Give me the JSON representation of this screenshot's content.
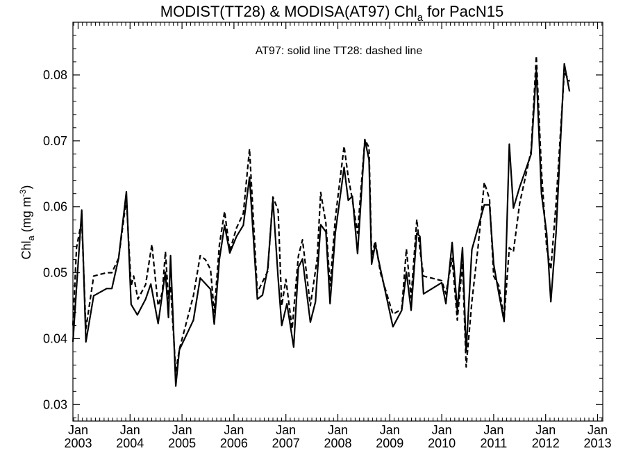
{
  "chart_data": {
    "type": "line",
    "title": "MODIST(TT28) & MODISA(AT97)  Chl",
    "title_sub": "a",
    "title_suffix": " for PacN15",
    "annotation": "AT97: solid line   TT28: dashed line",
    "ylabel": "Chl",
    "ylabel_sub": "a",
    "ylabel_unit": " (mg m",
    "ylabel_sup": "-3",
    "ylabel_close": ")",
    "xlabel": "",
    "xlim": [
      2002.9,
      2013.1
    ],
    "ylim": [
      0.0275,
      0.088
    ],
    "yticks": [
      "0.03",
      "0.04",
      "0.05",
      "0.06",
      "0.07",
      "0.08"
    ],
    "xticks": [
      {
        "top": "Jan",
        "bottom": "2003",
        "value": 2003.0
      },
      {
        "top": "Jan",
        "bottom": "2004",
        "value": 2004.0
      },
      {
        "top": "Jan",
        "bottom": "2005",
        "value": 2005.0
      },
      {
        "top": "Jan",
        "bottom": "2006",
        "value": 2006.0
      },
      {
        "top": "Jan",
        "bottom": "2007",
        "value": 2007.0
      },
      {
        "top": "Jan",
        "bottom": "2008",
        "value": 2008.0
      },
      {
        "top": "Jan",
        "bottom": "2009",
        "value": 2009.0
      },
      {
        "top": "Jan",
        "bottom": "2010",
        "value": 2010.0
      },
      {
        "top": "Jan",
        "bottom": "2011",
        "value": 2011.0
      },
      {
        "top": "Jan",
        "bottom": "2012",
        "value": 2012.0
      },
      {
        "top": "Jan",
        "bottom": "2013",
        "value": 2013.0
      }
    ],
    "series": [
      {
        "name": "AT97",
        "style": "solid",
        "color": "#000000",
        "points": [
          [
            2002.9,
            0.0395
          ],
          [
            2002.98,
            0.049
          ],
          [
            2003.07,
            0.0595
          ],
          [
            2003.15,
            0.0395
          ],
          [
            2003.3,
            0.0465
          ],
          [
            2003.55,
            0.0476
          ],
          [
            2003.65,
            0.0476
          ],
          [
            2003.78,
            0.0522
          ],
          [
            2003.93,
            0.0623
          ],
          [
            2004.02,
            0.0452
          ],
          [
            2004.14,
            0.0436
          ],
          [
            2004.3,
            0.046
          ],
          [
            2004.4,
            0.0483
          ],
          [
            2004.54,
            0.0423
          ],
          [
            2004.68,
            0.0501
          ],
          [
            2004.74,
            0.0432
          ],
          [
            2004.78,
            0.0526
          ],
          [
            2004.88,
            0.0328
          ],
          [
            2004.95,
            0.0383
          ],
          [
            2005.22,
            0.0428
          ],
          [
            2005.35,
            0.0492
          ],
          [
            2005.55,
            0.0475
          ],
          [
            2005.62,
            0.0422
          ],
          [
            2005.72,
            0.052
          ],
          [
            2005.82,
            0.0572
          ],
          [
            2005.92,
            0.053
          ],
          [
            2006.05,
            0.0555
          ],
          [
            2006.18,
            0.0572
          ],
          [
            2006.3,
            0.0645
          ],
          [
            2006.45,
            0.046
          ],
          [
            2006.55,
            0.0466
          ],
          [
            2006.65,
            0.0506
          ],
          [
            2006.75,
            0.0611
          ],
          [
            2006.85,
            0.0492
          ],
          [
            2006.92,
            0.042
          ],
          [
            2007.02,
            0.0453
          ],
          [
            2007.15,
            0.0387
          ],
          [
            2007.24,
            0.0508
          ],
          [
            2007.32,
            0.0521
          ],
          [
            2007.47,
            0.0425
          ],
          [
            2007.57,
            0.0456
          ],
          [
            2007.67,
            0.0573
          ],
          [
            2007.77,
            0.0562
          ],
          [
            2007.85,
            0.0453
          ],
          [
            2007.95,
            0.056
          ],
          [
            2008.12,
            0.066
          ],
          [
            2008.2,
            0.061
          ],
          [
            2008.28,
            0.0616
          ],
          [
            2008.38,
            0.0529
          ],
          [
            2008.52,
            0.0702
          ],
          [
            2008.6,
            0.0671
          ],
          [
            2008.65,
            0.0513
          ],
          [
            2008.72,
            0.0543
          ],
          [
            2008.82,
            0.0506
          ],
          [
            2009.06,
            0.0418
          ],
          [
            2009.23,
            0.0443
          ],
          [
            2009.32,
            0.0501
          ],
          [
            2009.41,
            0.0443
          ],
          [
            2009.52,
            0.056
          ],
          [
            2009.58,
            0.0555
          ],
          [
            2009.65,
            0.0468
          ],
          [
            2010.0,
            0.0485
          ],
          [
            2010.08,
            0.0453
          ],
          [
            2010.2,
            0.0546
          ],
          [
            2010.3,
            0.0443
          ],
          [
            2010.4,
            0.0538
          ],
          [
            2010.47,
            0.0381
          ],
          [
            2010.58,
            0.0535
          ],
          [
            2010.82,
            0.0603
          ],
          [
            2010.92,
            0.0603
          ],
          [
            2011.0,
            0.0513
          ],
          [
            2011.1,
            0.0468
          ],
          [
            2011.2,
            0.0426
          ],
          [
            2011.3,
            0.0695
          ],
          [
            2011.38,
            0.0598
          ],
          [
            2011.5,
            0.063
          ],
          [
            2011.72,
            0.068
          ],
          [
            2011.82,
            0.0807
          ],
          [
            2011.92,
            0.062
          ],
          [
            2012.02,
            0.056
          ],
          [
            2012.1,
            0.0456
          ],
          [
            2012.2,
            0.056
          ],
          [
            2012.36,
            0.0817
          ],
          [
            2012.46,
            0.0775
          ]
        ]
      },
      {
        "name": "TT28",
        "style": "dashed",
        "color": "#000000",
        "points": [
          [
            2002.9,
            0.042
          ],
          [
            2002.97,
            0.0538
          ],
          [
            2003.07,
            0.058
          ],
          [
            2003.15,
            0.0415
          ],
          [
            2003.3,
            0.0495
          ],
          [
            2003.55,
            0.05
          ],
          [
            2003.65,
            0.05
          ],
          [
            2003.78,
            0.0522
          ],
          [
            2003.93,
            0.0612
          ],
          [
            2004.02,
            0.048
          ],
          [
            2004.07,
            0.0495
          ],
          [
            2004.15,
            0.046
          ],
          [
            2004.3,
            0.0482
          ],
          [
            2004.42,
            0.0543
          ],
          [
            2004.54,
            0.045
          ],
          [
            2004.62,
            0.047
          ],
          [
            2004.68,
            0.0532
          ],
          [
            2004.74,
            0.0461
          ],
          [
            2004.78,
            0.048
          ],
          [
            2004.88,
            0.035
          ],
          [
            2004.95,
            0.0384
          ],
          [
            2005.22,
            0.0465
          ],
          [
            2005.35,
            0.0526
          ],
          [
            2005.45,
            0.052
          ],
          [
            2005.55,
            0.0505
          ],
          [
            2005.62,
            0.044
          ],
          [
            2005.72,
            0.0542
          ],
          [
            2005.82,
            0.0593
          ],
          [
            2005.92,
            0.0533
          ],
          [
            2006.05,
            0.0568
          ],
          [
            2006.18,
            0.059
          ],
          [
            2006.3,
            0.0688
          ],
          [
            2006.45,
            0.047
          ],
          [
            2006.55,
            0.0486
          ],
          [
            2006.65,
            0.0502
          ],
          [
            2006.75,
            0.0615
          ],
          [
            2006.85,
            0.0595
          ],
          [
            2006.92,
            0.045
          ],
          [
            2007.0,
            0.049
          ],
          [
            2007.12,
            0.0415
          ],
          [
            2007.24,
            0.0525
          ],
          [
            2007.32,
            0.055
          ],
          [
            2007.47,
            0.045
          ],
          [
            2007.6,
            0.052
          ],
          [
            2007.67,
            0.0622
          ],
          [
            2007.77,
            0.0575
          ],
          [
            2007.85,
            0.048
          ],
          [
            2007.95,
            0.0582
          ],
          [
            2008.12,
            0.0692
          ],
          [
            2008.2,
            0.0645
          ],
          [
            2008.28,
            0.0611
          ],
          [
            2008.38,
            0.056
          ],
          [
            2008.52,
            0.0702
          ],
          [
            2008.6,
            0.069
          ],
          [
            2008.65,
            0.0526
          ],
          [
            2008.72,
            0.0548
          ],
          [
            2008.82,
            0.05
          ],
          [
            2009.06,
            0.0437
          ],
          [
            2009.23,
            0.0445
          ],
          [
            2009.32,
            0.0536
          ],
          [
            2009.41,
            0.0462
          ],
          [
            2009.52,
            0.0581
          ],
          [
            2009.58,
            0.0535
          ],
          [
            2009.65,
            0.0495
          ],
          [
            2010.0,
            0.0488
          ],
          [
            2010.08,
            0.0468
          ],
          [
            2010.2,
            0.0522
          ],
          [
            2010.3,
            0.0428
          ],
          [
            2010.4,
            0.0515
          ],
          [
            2010.47,
            0.0357
          ],
          [
            2010.58,
            0.0456
          ],
          [
            2010.7,
            0.054
          ],
          [
            2010.82,
            0.0637
          ],
          [
            2010.92,
            0.0612
          ],
          [
            2011.0,
            0.0495
          ],
          [
            2011.1,
            0.048
          ],
          [
            2011.2,
            0.043
          ],
          [
            2011.3,
            0.0538
          ],
          [
            2011.38,
            0.0532
          ],
          [
            2011.5,
            0.0605
          ],
          [
            2011.72,
            0.0685
          ],
          [
            2011.82,
            0.0829
          ],
          [
            2011.92,
            0.0655
          ],
          [
            2012.02,
            0.0538
          ],
          [
            2012.1,
            0.0505
          ],
          [
            2012.2,
            0.0605
          ],
          [
            2012.36,
            0.0805
          ],
          [
            2012.46,
            0.079
          ]
        ]
      }
    ],
    "legend": "none",
    "grid": false
  }
}
